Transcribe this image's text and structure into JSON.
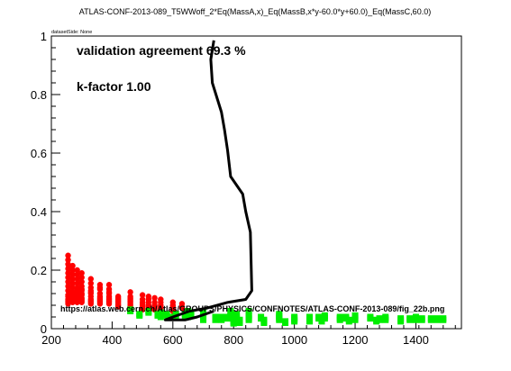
{
  "chart_data": {
    "type": "scatter",
    "title": "ATLAS-CONF-2013-089_T5WWoff_2*Eq(MassA,x)_Eq(MassB,x*y-60.0*y+60.0)_Eq(MassC,60.0)",
    "dataset_label": "datasetSide: None",
    "xlabel": "",
    "ylabel": "",
    "xlim": [
      200,
      1550
    ],
    "ylim": [
      0,
      1.0
    ],
    "x_ticks": [
      200,
      400,
      600,
      800,
      1000,
      1200,
      1400
    ],
    "y_ticks": [
      0,
      0.2,
      0.4,
      0.6,
      0.8,
      1
    ],
    "y_tick_labels": [
      "0",
      "0.2",
      "0.4",
      "0.6",
      "0.8",
      "1"
    ],
    "annotations": {
      "agreement": "validation agreement 69.3 %",
      "kfactor": "k-factor 1.00",
      "url": "https://atlas.web.cern.ch/Atlas/GROUPS/PHYSICS/CONFNOTES/ATLAS-CONF-2013-089/fig_22b.png"
    },
    "colors": {
      "excluded": "#ff0000",
      "allowed": "#00ee00",
      "contour": "#000000"
    },
    "series": [
      {
        "role": "excluded",
        "x": [
          255,
          255,
          255,
          255,
          255,
          255,
          255,
          255,
          255,
          255,
          255,
          255,
          255,
          255,
          255,
          270,
          270,
          270,
          270,
          270,
          270,
          270,
          270,
          270,
          270,
          270,
          270,
          285,
          285,
          285,
          285,
          285,
          285,
          285,
          285,
          285,
          285,
          285,
          285,
          285,
          300,
          300,
          300,
          300,
          300,
          300,
          300,
          300,
          300,
          300,
          300,
          300,
          330,
          330,
          330,
          330,
          330,
          330,
          330,
          330,
          330,
          330,
          330,
          360,
          360,
          360,
          360,
          360,
          360,
          360,
          360,
          360,
          360,
          390,
          390,
          390,
          390,
          390,
          390,
          390,
          390,
          390,
          390,
          420,
          420,
          420,
          420,
          420,
          420,
          420,
          420,
          460,
          460,
          460,
          460,
          460,
          460,
          460,
          460,
          460,
          460,
          500,
          500,
          500,
          500,
          500,
          500,
          500,
          500,
          520,
          520,
          520,
          520,
          520,
          520,
          540,
          540,
          540,
          540,
          540,
          540,
          560,
          560,
          560,
          560,
          560,
          600,
          600,
          600,
          600,
          600,
          600,
          630,
          630,
          630
        ],
        "y": [
          0.25,
          0.235,
          0.22,
          0.205,
          0.19,
          0.175,
          0.16,
          0.145,
          0.13,
          0.115,
          0.11,
          0.1,
          0.09,
          0.095,
          0.085,
          0.215,
          0.2,
          0.185,
          0.17,
          0.155,
          0.14,
          0.125,
          0.11,
          0.1,
          0.095,
          0.09,
          0.12,
          0.2,
          0.185,
          0.17,
          0.155,
          0.14,
          0.125,
          0.11,
          0.1,
          0.095,
          0.09,
          0.105,
          0.13,
          0.12,
          0.19,
          0.175,
          0.16,
          0.145,
          0.13,
          0.115,
          0.1,
          0.095,
          0.09,
          0.105,
          0.12,
          0.135,
          0.17,
          0.155,
          0.14,
          0.125,
          0.11,
          0.1,
          0.095,
          0.09,
          0.085,
          0.12,
          0.13,
          0.15,
          0.135,
          0.12,
          0.105,
          0.1,
          0.095,
          0.09,
          0.085,
          0.11,
          0.14,
          0.15,
          0.135,
          0.12,
          0.105,
          0.1,
          0.095,
          0.09,
          0.085,
          0.11,
          0.125,
          0.11,
          0.1,
          0.09,
          0.085,
          0.08,
          0.095,
          0.105,
          0.075,
          0.125,
          0.11,
          0.1,
          0.09,
          0.085,
          0.08,
          0.095,
          0.105,
          0.075,
          0.065,
          0.115,
          0.1,
          0.09,
          0.085,
          0.08,
          0.075,
          0.07,
          0.065,
          0.11,
          0.1,
          0.09,
          0.08,
          0.075,
          0.07,
          0.105,
          0.09,
          0.08,
          0.075,
          0.07,
          0.065,
          0.1,
          0.09,
          0.08,
          0.075,
          0.07,
          0.09,
          0.08,
          0.075,
          0.07,
          0.065,
          0.06,
          0.085,
          0.075,
          0.07
        ]
      },
      {
        "role": "allowed",
        "x": [
          460,
          460,
          490,
          490,
          520,
          520,
          550,
          550,
          560,
          560,
          580,
          580,
          600,
          610,
          610,
          640,
          640,
          650,
          650,
          650,
          660,
          660,
          700,
          700,
          700,
          700,
          700,
          700,
          700,
          740,
          740,
          740,
          760,
          760,
          760,
          780,
          780,
          790,
          790,
          790,
          790,
          800,
          800,
          800,
          800,
          800,
          810,
          810,
          810,
          810,
          820,
          820,
          820,
          850,
          850,
          850,
          850,
          850,
          850,
          890,
          890,
          900,
          900,
          900,
          950,
          950,
          950,
          950,
          950,
          970,
          970,
          1000,
          1000,
          1000,
          1000,
          1050,
          1050,
          1050,
          1050,
          1080,
          1080,
          1090,
          1090,
          1100,
          1100,
          1100,
          1150,
          1150,
          1150,
          1170,
          1170,
          1180,
          1180,
          1200,
          1200,
          1200,
          1200,
          1250,
          1250,
          1270,
          1270,
          1280,
          1280,
          1300,
          1300,
          1300,
          1350,
          1350,
          1350,
          1380,
          1380,
          1400,
          1400,
          1400,
          1420,
          1420,
          1450,
          1450,
          1470,
          1470,
          1490,
          1490
        ],
        "y": [
          0.065,
          0.06,
          0.05,
          0.045,
          0.06,
          0.055,
          0.05,
          0.045,
          0.055,
          0.04,
          0.05,
          0.045,
          0.04,
          0.05,
          0.045,
          0.05,
          0.045,
          0.06,
          0.05,
          0.04,
          0.055,
          0.045,
          0.06,
          0.055,
          0.05,
          0.045,
          0.04,
          0.035,
          0.03,
          0.04,
          0.035,
          0.03,
          0.04,
          0.035,
          0.03,
          0.04,
          0.035,
          0.06,
          0.05,
          0.045,
          0.04,
          0.035,
          0.03,
          0.025,
          0.02,
          0.018,
          0.05,
          0.045,
          0.04,
          0.035,
          0.03,
          0.025,
          0.02,
          0.06,
          0.05,
          0.045,
          0.04,
          0.035,
          0.03,
          0.04,
          0.035,
          0.03,
          0.025,
          0.02,
          0.05,
          0.045,
          0.04,
          0.035,
          0.03,
          0.025,
          0.02,
          0.04,
          0.035,
          0.03,
          0.025,
          0.04,
          0.035,
          0.03,
          0.025,
          0.04,
          0.035,
          0.03,
          0.025,
          0.045,
          0.04,
          0.035,
          0.04,
          0.035,
          0.03,
          0.04,
          0.035,
          0.03,
          0.025,
          0.045,
          0.04,
          0.035,
          0.03,
          0.04,
          0.035,
          0.03,
          0.025,
          0.035,
          0.03,
          0.04,
          0.035,
          0.03,
          0.035,
          0.03,
          0.025,
          0.035,
          0.03,
          0.04,
          0.035,
          0.03,
          0.035,
          0.03,
          0.035,
          0.03,
          0.035,
          0.03,
          0.035,
          0.03
        ]
      },
      {
        "role": "contour",
        "type": "line",
        "x": [
          735,
          725,
          730,
          760,
          770,
          780,
          790,
          830,
          840,
          855,
          860,
          840,
          780,
          710,
          655,
          600,
          575,
          640,
          680,
          735
        ],
        "y": [
          0.985,
          0.92,
          0.84,
          0.74,
          0.68,
          0.61,
          0.52,
          0.46,
          0.4,
          0.33,
          0.13,
          0.1,
          0.09,
          0.07,
          0.06,
          0.04,
          0.03,
          0.03,
          0.04,
          0.06
        ]
      }
    ]
  }
}
